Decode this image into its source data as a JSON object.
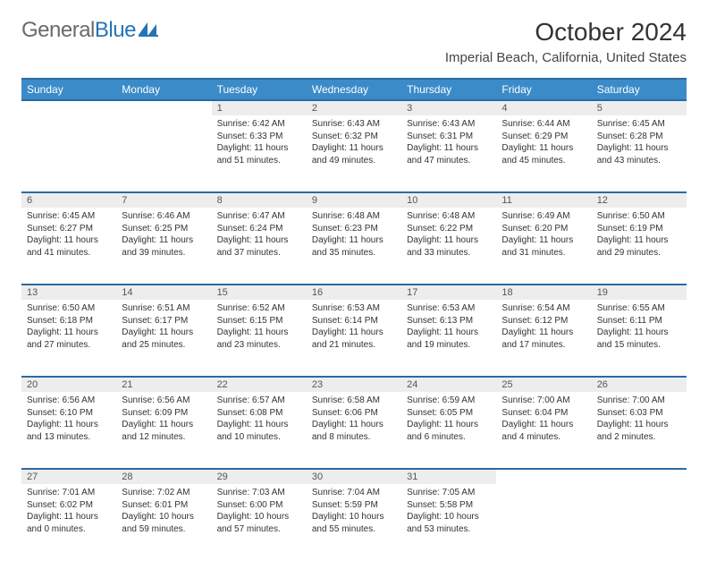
{
  "brand": {
    "part1": "General",
    "part2": "Blue"
  },
  "title": "October 2024",
  "location": "Imperial Beach, California, United States",
  "colors": {
    "header_bg": "#3b8bc8",
    "header_border": "#2b6aa0",
    "daynum_bg": "#ededed",
    "text": "#333333",
    "brand_gray": "#6a6a6a",
    "brand_blue": "#2474b6"
  },
  "day_headers": [
    "Sunday",
    "Monday",
    "Tuesday",
    "Wednesday",
    "Thursday",
    "Friday",
    "Saturday"
  ],
  "weeks": [
    [
      null,
      null,
      {
        "n": "1",
        "sr": "6:42 AM",
        "ss": "6:33 PM",
        "dl": "11 hours and 51 minutes."
      },
      {
        "n": "2",
        "sr": "6:43 AM",
        "ss": "6:32 PM",
        "dl": "11 hours and 49 minutes."
      },
      {
        "n": "3",
        "sr": "6:43 AM",
        "ss": "6:31 PM",
        "dl": "11 hours and 47 minutes."
      },
      {
        "n": "4",
        "sr": "6:44 AM",
        "ss": "6:29 PM",
        "dl": "11 hours and 45 minutes."
      },
      {
        "n": "5",
        "sr": "6:45 AM",
        "ss": "6:28 PM",
        "dl": "11 hours and 43 minutes."
      }
    ],
    [
      {
        "n": "6",
        "sr": "6:45 AM",
        "ss": "6:27 PM",
        "dl": "11 hours and 41 minutes."
      },
      {
        "n": "7",
        "sr": "6:46 AM",
        "ss": "6:25 PM",
        "dl": "11 hours and 39 minutes."
      },
      {
        "n": "8",
        "sr": "6:47 AM",
        "ss": "6:24 PM",
        "dl": "11 hours and 37 minutes."
      },
      {
        "n": "9",
        "sr": "6:48 AM",
        "ss": "6:23 PM",
        "dl": "11 hours and 35 minutes."
      },
      {
        "n": "10",
        "sr": "6:48 AM",
        "ss": "6:22 PM",
        "dl": "11 hours and 33 minutes."
      },
      {
        "n": "11",
        "sr": "6:49 AM",
        "ss": "6:20 PM",
        "dl": "11 hours and 31 minutes."
      },
      {
        "n": "12",
        "sr": "6:50 AM",
        "ss": "6:19 PM",
        "dl": "11 hours and 29 minutes."
      }
    ],
    [
      {
        "n": "13",
        "sr": "6:50 AM",
        "ss": "6:18 PM",
        "dl": "11 hours and 27 minutes."
      },
      {
        "n": "14",
        "sr": "6:51 AM",
        "ss": "6:17 PM",
        "dl": "11 hours and 25 minutes."
      },
      {
        "n": "15",
        "sr": "6:52 AM",
        "ss": "6:15 PM",
        "dl": "11 hours and 23 minutes."
      },
      {
        "n": "16",
        "sr": "6:53 AM",
        "ss": "6:14 PM",
        "dl": "11 hours and 21 minutes."
      },
      {
        "n": "17",
        "sr": "6:53 AM",
        "ss": "6:13 PM",
        "dl": "11 hours and 19 minutes."
      },
      {
        "n": "18",
        "sr": "6:54 AM",
        "ss": "6:12 PM",
        "dl": "11 hours and 17 minutes."
      },
      {
        "n": "19",
        "sr": "6:55 AM",
        "ss": "6:11 PM",
        "dl": "11 hours and 15 minutes."
      }
    ],
    [
      {
        "n": "20",
        "sr": "6:56 AM",
        "ss": "6:10 PM",
        "dl": "11 hours and 13 minutes."
      },
      {
        "n": "21",
        "sr": "6:56 AM",
        "ss": "6:09 PM",
        "dl": "11 hours and 12 minutes."
      },
      {
        "n": "22",
        "sr": "6:57 AM",
        "ss": "6:08 PM",
        "dl": "11 hours and 10 minutes."
      },
      {
        "n": "23",
        "sr": "6:58 AM",
        "ss": "6:06 PM",
        "dl": "11 hours and 8 minutes."
      },
      {
        "n": "24",
        "sr": "6:59 AM",
        "ss": "6:05 PM",
        "dl": "11 hours and 6 minutes."
      },
      {
        "n": "25",
        "sr": "7:00 AM",
        "ss": "6:04 PM",
        "dl": "11 hours and 4 minutes."
      },
      {
        "n": "26",
        "sr": "7:00 AM",
        "ss": "6:03 PM",
        "dl": "11 hours and 2 minutes."
      }
    ],
    [
      {
        "n": "27",
        "sr": "7:01 AM",
        "ss": "6:02 PM",
        "dl": "11 hours and 0 minutes."
      },
      {
        "n": "28",
        "sr": "7:02 AM",
        "ss": "6:01 PM",
        "dl": "10 hours and 59 minutes."
      },
      {
        "n": "29",
        "sr": "7:03 AM",
        "ss": "6:00 PM",
        "dl": "10 hours and 57 minutes."
      },
      {
        "n": "30",
        "sr": "7:04 AM",
        "ss": "5:59 PM",
        "dl": "10 hours and 55 minutes."
      },
      {
        "n": "31",
        "sr": "7:05 AM",
        "ss": "5:58 PM",
        "dl": "10 hours and 53 minutes."
      },
      null,
      null
    ]
  ],
  "labels": {
    "sunrise": "Sunrise:",
    "sunset": "Sunset:",
    "daylight": "Daylight:"
  }
}
